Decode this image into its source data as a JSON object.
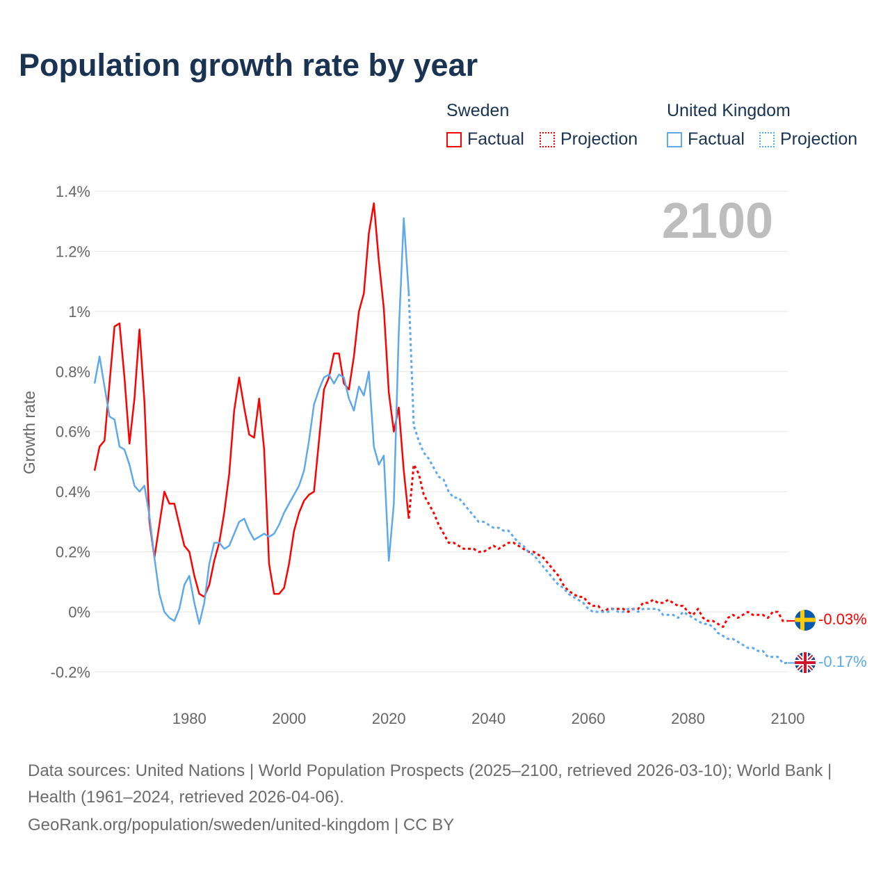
{
  "title": "Population growth rate by year",
  "legend": {
    "groups": [
      {
        "name": "Sweden",
        "factual": "Factual",
        "projection": "Projection",
        "color": "#ff0000"
      },
      {
        "name": "United Kingdom",
        "factual": "Factual",
        "projection": "Projection",
        "color": "#5ea8ec"
      }
    ]
  },
  "year_display": "2100",
  "end_labels": {
    "sweden": "-0.03%",
    "uk": "-0.17%"
  },
  "footer": {
    "sources": "Data sources: United Nations | World Population Prospects (2025–2100, retrieved 2026-03-10); World Bank | Health (1961–2024, retrieved 2026-04-06).",
    "site": "GeoRank.org/population/sweden/united-kingdom | CC BY"
  },
  "chart_data": {
    "type": "line",
    "title": "Population growth rate by year",
    "xlabel": "",
    "ylabel": "Growth rate",
    "xlim": [
      1961,
      2100
    ],
    "ylim": [
      -0.25,
      1.4
    ],
    "yticks": [
      -0.2,
      0,
      0.2,
      0.4,
      0.6,
      0.8,
      1,
      1.2,
      1.4
    ],
    "ytick_labels": [
      "-0.2%",
      "0%",
      "0.2%",
      "0.4%",
      "0.6%",
      "0.8%",
      "1%",
      "1.2%",
      "1.4%"
    ],
    "xticks": [
      1980,
      2000,
      2020,
      2040,
      2060,
      2080,
      2100
    ],
    "xtick_labels": [
      "1980",
      "2000",
      "2020",
      "2040",
      "2060",
      "2080",
      "2100"
    ],
    "grid": true,
    "legend_position": "top-right",
    "series": [
      {
        "name": "Sweden Factual",
        "color": "#ff0000",
        "style": "solid",
        "start_year": 1961,
        "values": [
          0.47,
          0.55,
          0.57,
          0.76,
          0.95,
          0.96,
          0.78,
          0.56,
          0.71,
          0.94,
          0.7,
          0.3,
          0.18,
          0.29,
          0.4,
          0.36,
          0.36,
          0.29,
          0.22,
          0.2,
          0.12,
          0.06,
          0.05,
          0.09,
          0.17,
          0.23,
          0.33,
          0.46,
          0.67,
          0.78,
          0.68,
          0.59,
          0.58,
          0.71,
          0.54,
          0.16,
          0.06,
          0.06,
          0.08,
          0.16,
          0.27,
          0.33,
          0.37,
          0.39,
          0.4,
          0.57,
          0.74,
          0.78,
          0.86,
          0.86,
          0.76,
          0.74,
          0.85,
          1.0,
          1.06,
          1.26,
          1.36,
          1.17,
          1.01,
          0.73,
          0.6,
          0.68,
          0.47,
          0.31
        ]
      },
      {
        "name": "Sweden Projection",
        "color": "#ff0000",
        "style": "dotted",
        "start_year": 2024,
        "values": [
          0.31,
          0.49,
          0.46,
          0.39,
          0.36,
          0.33,
          0.29,
          0.26,
          0.23,
          0.23,
          0.22,
          0.21,
          0.21,
          0.21,
          0.2,
          0.2,
          0.21,
          0.22,
          0.21,
          0.22,
          0.23,
          0.23,
          0.22,
          0.21,
          0.2,
          0.2,
          0.19,
          0.18,
          0.16,
          0.14,
          0.12,
          0.09,
          0.07,
          0.06,
          0.05,
          0.05,
          0.03,
          0.02,
          0.02,
          0.0,
          0.01,
          0.01,
          0.01,
          0.01,
          0.0,
          0.01,
          0.01,
          0.03,
          0.03,
          0.04,
          0.03,
          0.03,
          0.04,
          0.03,
          0.02,
          0.02,
          0.0,
          -0.01,
          0.01,
          -0.02,
          -0.03,
          -0.03,
          -0.04,
          -0.05,
          -0.02,
          -0.01,
          -0.02,
          -0.01,
          0.0,
          -0.01,
          -0.01,
          -0.01,
          -0.02,
          0.0,
          0.0,
          -0.03,
          -0.03
        ]
      },
      {
        "name": "United Kingdom Factual",
        "color": "#5ea8ec",
        "style": "solid",
        "start_year": 1961,
        "values": [
          0.76,
          0.85,
          0.75,
          0.65,
          0.64,
          0.55,
          0.54,
          0.49,
          0.42,
          0.4,
          0.42,
          0.32,
          0.18,
          0.06,
          0.0,
          -0.02,
          -0.03,
          0.01,
          0.09,
          0.12,
          0.03,
          -0.04,
          0.03,
          0.16,
          0.23,
          0.23,
          0.21,
          0.22,
          0.26,
          0.3,
          0.31,
          0.27,
          0.24,
          0.25,
          0.26,
          0.25,
          0.26,
          0.29,
          0.33,
          0.36,
          0.39,
          0.42,
          0.47,
          0.57,
          0.69,
          0.74,
          0.78,
          0.79,
          0.76,
          0.79,
          0.78,
          0.71,
          0.67,
          0.75,
          0.72,
          0.8,
          0.55,
          0.49,
          0.52,
          0.17,
          0.36,
          0.93,
          1.31,
          1.06
        ]
      },
      {
        "name": "United Kingdom Projection",
        "color": "#5ea8ec",
        "style": "dotted",
        "start_year": 2024,
        "values": [
          1.06,
          0.62,
          0.57,
          0.53,
          0.51,
          0.48,
          0.45,
          0.44,
          0.4,
          0.38,
          0.38,
          0.36,
          0.34,
          0.32,
          0.3,
          0.3,
          0.29,
          0.28,
          0.28,
          0.27,
          0.27,
          0.25,
          0.23,
          0.22,
          0.2,
          0.19,
          0.17,
          0.15,
          0.13,
          0.11,
          0.09,
          0.08,
          0.06,
          0.05,
          0.04,
          0.03,
          0.01,
          0.0,
          0.0,
          0.0,
          0.0,
          0.01,
          0.0,
          0.0,
          0.01,
          0.01,
          0.0,
          0.01,
          0.01,
          0.01,
          0.01,
          -0.01,
          -0.01,
          -0.01,
          -0.02,
          0.0,
          -0.01,
          -0.02,
          -0.03,
          -0.04,
          -0.04,
          -0.05,
          -0.07,
          -0.08,
          -0.09,
          -0.09,
          -0.1,
          -0.11,
          -0.12,
          -0.12,
          -0.13,
          -0.13,
          -0.15,
          -0.15,
          -0.15,
          -0.17,
          -0.17
        ]
      }
    ]
  }
}
